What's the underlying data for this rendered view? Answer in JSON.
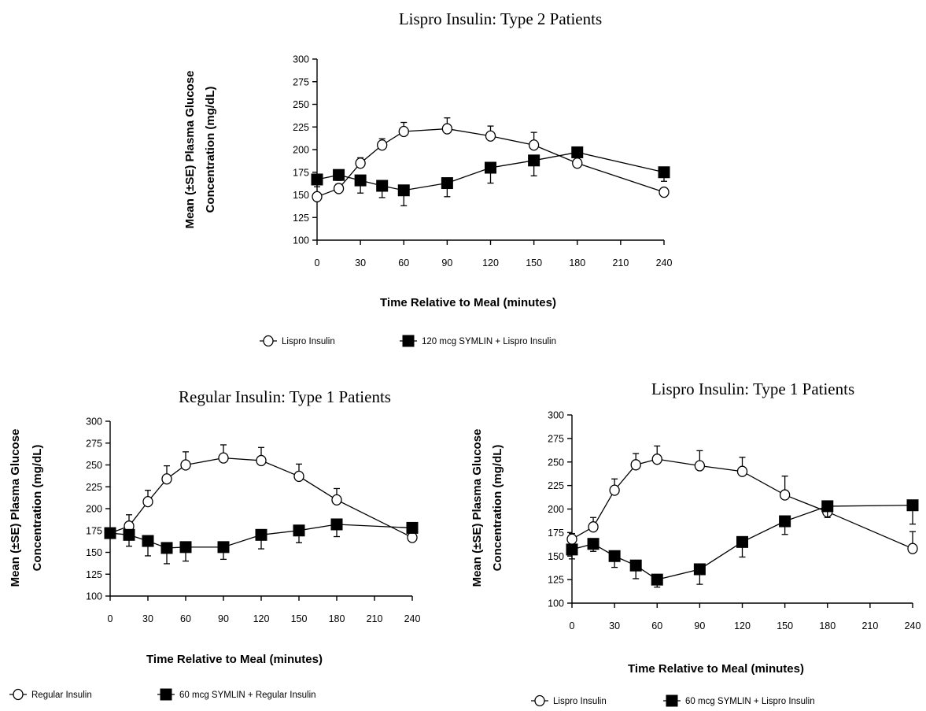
{
  "chart_data": [
    {
      "type": "line",
      "title": "Lispro Insulin:  Type 2 Patients",
      "xlabel": "Time Relative to Meal (minutes)",
      "ylabel_line1": "Mean (±SE) Plasma Glucose",
      "ylabel_line2": "Concentration (mg/dL)",
      "xlim": [
        0,
        240
      ],
      "ylim": [
        100,
        300
      ],
      "x_ticks": [
        "0",
        "30",
        "60",
        "90",
        "120",
        "150",
        "180",
        "210",
        "240"
      ],
      "y_ticks": [
        "100",
        "125",
        "150",
        "175",
        "200",
        "225",
        "250",
        "275",
        "300"
      ],
      "legend_position": "bottom",
      "series": [
        {
          "name": "Lispro Insulin",
          "marker": "open-diamond",
          "x": [
            0,
            15,
            30,
            45,
            60,
            90,
            120,
            150,
            180,
            240
          ],
          "values": [
            148,
            157,
            185,
            205,
            220,
            223,
            215,
            205,
            185,
            153
          ],
          "error": [
            4,
            5,
            6,
            7,
            10,
            12,
            11,
            14,
            4,
            4
          ],
          "error_direction": "up"
        },
        {
          "name": "120 mcg SYMLIN + Lispro Insulin",
          "marker": "filled-square",
          "x": [
            0,
            15,
            30,
            45,
            60,
            90,
            120,
            150,
            180,
            240
          ],
          "values": [
            167,
            172,
            166,
            160,
            155,
            163,
            180,
            188,
            197,
            175
          ],
          "error": [
            8,
            6,
            14,
            13,
            17,
            15,
            17,
            17,
            4,
            10
          ],
          "error_direction": "down"
        }
      ]
    },
    {
      "type": "line",
      "title": "Regular Insulin:  Type 1 Patients",
      "xlabel": "Time Relative to Meal (minutes)",
      "ylabel_line1": "Mean (±SE) Plasma Glucose",
      "ylabel_line2": "Concentration (mg/dL)",
      "xlim": [
        0,
        240
      ],
      "ylim": [
        100,
        300
      ],
      "x_ticks": [
        "0",
        "30",
        "60",
        "90",
        "120",
        "150",
        "180",
        "210",
        "240"
      ],
      "y_ticks": [
        "100",
        "125",
        "150",
        "175",
        "200",
        "225",
        "250",
        "275",
        "300"
      ],
      "legend_position": "bottom",
      "series": [
        {
          "name": "Regular Insulin",
          "marker": "open-diamond",
          "x": [
            0,
            15,
            30,
            45,
            60,
            90,
            120,
            150,
            180,
            240
          ],
          "values": [
            172,
            180,
            208,
            234,
            250,
            258,
            255,
            237,
            210,
            167
          ],
          "error": [
            5,
            13,
            13,
            15,
            15,
            15,
            15,
            14,
            13,
            4
          ],
          "error_direction": "up"
        },
        {
          "name": "60 mcg SYMLIN + Regular Insulin",
          "marker": "filled-square",
          "x": [
            0,
            15,
            30,
            45,
            60,
            90,
            120,
            150,
            180,
            240
          ],
          "values": [
            172,
            170,
            163,
            155,
            156,
            156,
            170,
            175,
            182,
            178
          ],
          "error": [
            6,
            13,
            17,
            18,
            16,
            14,
            16,
            14,
            14,
            6
          ],
          "error_direction": "down"
        }
      ]
    },
    {
      "type": "line",
      "title": "Lispro Insulin:  Type 1 Patients",
      "xlabel": "Time Relative to Meal (minutes)",
      "ylabel_line1": "Mean (±SE) Plasma Glucose",
      "ylabel_line2": "Concentration (mg/dL)",
      "xlim": [
        0,
        240
      ],
      "ylim": [
        100,
        300
      ],
      "x_ticks": [
        "0",
        "30",
        "60",
        "90",
        "120",
        "150",
        "180",
        "210",
        "240"
      ],
      "y_ticks": [
        "100",
        "125",
        "150",
        "175",
        "200",
        "225",
        "250",
        "275",
        "300"
      ],
      "legend_position": "bottom",
      "series": [
        {
          "name": "Lispro Insulin",
          "marker": "open-diamond",
          "x": [
            0,
            15,
            30,
            45,
            60,
            90,
            120,
            150,
            180,
            240
          ],
          "values": [
            168,
            181,
            220,
            247,
            253,
            246,
            240,
            215,
            197,
            158
          ],
          "error": [
            6,
            10,
            12,
            12,
            14,
            16,
            15,
            20,
            8,
            18
          ],
          "error_direction": "up"
        },
        {
          "name": "60 mcg SYMLIN + Lispro Insulin",
          "marker": "filled-square",
          "x": [
            0,
            15,
            30,
            45,
            60,
            90,
            120,
            150,
            180,
            240
          ],
          "values": [
            157,
            163,
            150,
            140,
            125,
            136,
            165,
            187,
            203,
            204
          ],
          "error": [
            10,
            8,
            12,
            14,
            8,
            16,
            16,
            14,
            12,
            20
          ],
          "error_direction": "down"
        }
      ]
    }
  ]
}
